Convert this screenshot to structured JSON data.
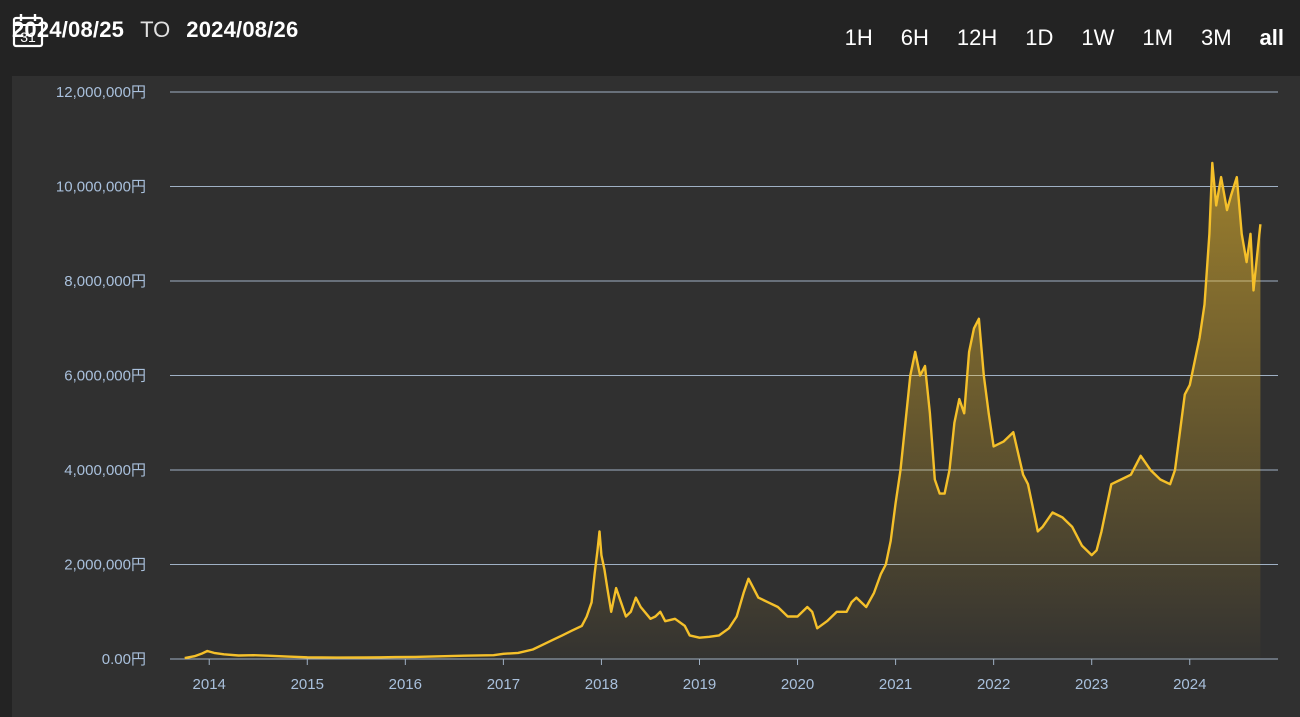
{
  "header": {
    "calendar_icon": "calendar-icon",
    "calendar_day": "31",
    "start_date": "2024/08/25",
    "to_label": "TO",
    "end_date": "2024/08/26"
  },
  "ranges": {
    "items": [
      {
        "label": "1H"
      },
      {
        "label": "6H"
      },
      {
        "label": "12H"
      },
      {
        "label": "1D"
      },
      {
        "label": "1W"
      },
      {
        "label": "1M"
      },
      {
        "label": "3M"
      },
      {
        "label": "all",
        "active": true
      }
    ]
  },
  "colors": {
    "line": "#f5c02a",
    "grid": "#9fb0c4",
    "tick": "#a9c0dc",
    "panel": "#303030",
    "page": "#232323"
  },
  "chart_data": {
    "type": "area",
    "ylim": [
      0,
      12000000
    ],
    "xlim": [
      2013.6,
      2024.9
    ],
    "y_ticks": [
      {
        "value": 0,
        "label": "0.00円"
      },
      {
        "value": 2000000,
        "label": "2,000,000円"
      },
      {
        "value": 4000000,
        "label": "4,000,000円"
      },
      {
        "value": 6000000,
        "label": "6,000,000円"
      },
      {
        "value": 8000000,
        "label": "8,000,000円"
      },
      {
        "value": 10000000,
        "label": "10,000,000円"
      },
      {
        "value": 12000000,
        "label": "12,000,000円"
      }
    ],
    "x_ticks": [
      {
        "value": 2014,
        "label": "2014"
      },
      {
        "value": 2015,
        "label": "2015"
      },
      {
        "value": 2016,
        "label": "2016"
      },
      {
        "value": 2017,
        "label": "2017"
      },
      {
        "value": 2018,
        "label": "2018"
      },
      {
        "value": 2019,
        "label": "2019"
      },
      {
        "value": 2020,
        "label": "2020"
      },
      {
        "value": 2021,
        "label": "2021"
      },
      {
        "value": 2022,
        "label": "2022"
      },
      {
        "value": 2023,
        "label": "2023"
      },
      {
        "value": 2024,
        "label": "2024"
      }
    ],
    "grid": true,
    "series": [
      {
        "values": [
          [
            2013.75,
            20000
          ],
          [
            2013.85,
            60000
          ],
          [
            2013.92,
            110000
          ],
          [
            2013.98,
            170000
          ],
          [
            2014.05,
            130000
          ],
          [
            2014.15,
            100000
          ],
          [
            2014.3,
            75000
          ],
          [
            2014.45,
            80000
          ],
          [
            2014.6,
            70000
          ],
          [
            2014.8,
            50000
          ],
          [
            2015.0,
            35000
          ],
          [
            2015.3,
            30000
          ],
          [
            2015.6,
            32000
          ],
          [
            2015.9,
            40000
          ],
          [
            2016.1,
            45000
          ],
          [
            2016.4,
            60000
          ],
          [
            2016.6,
            70000
          ],
          [
            2016.9,
            80000
          ],
          [
            2017.0,
            110000
          ],
          [
            2017.15,
            130000
          ],
          [
            2017.3,
            200000
          ],
          [
            2017.4,
            300000
          ],
          [
            2017.5,
            400000
          ],
          [
            2017.6,
            500000
          ],
          [
            2017.7,
            600000
          ],
          [
            2017.8,
            700000
          ],
          [
            2017.85,
            900000
          ],
          [
            2017.9,
            1200000
          ],
          [
            2017.93,
            1800000
          ],
          [
            2017.96,
            2300000
          ],
          [
            2017.98,
            2700000
          ],
          [
            2018.0,
            2200000
          ],
          [
            2018.03,
            1900000
          ],
          [
            2018.06,
            1500000
          ],
          [
            2018.1,
            1000000
          ],
          [
            2018.15,
            1500000
          ],
          [
            2018.2,
            1200000
          ],
          [
            2018.25,
            900000
          ],
          [
            2018.3,
            1000000
          ],
          [
            2018.35,
            1300000
          ],
          [
            2018.4,
            1100000
          ],
          [
            2018.5,
            850000
          ],
          [
            2018.55,
            900000
          ],
          [
            2018.6,
            1000000
          ],
          [
            2018.65,
            800000
          ],
          [
            2018.75,
            850000
          ],
          [
            2018.85,
            700000
          ],
          [
            2018.9,
            500000
          ],
          [
            2019.0,
            450000
          ],
          [
            2019.1,
            470000
          ],
          [
            2019.2,
            500000
          ],
          [
            2019.3,
            650000
          ],
          [
            2019.38,
            900000
          ],
          [
            2019.45,
            1400000
          ],
          [
            2019.5,
            1700000
          ],
          [
            2019.55,
            1500000
          ],
          [
            2019.6,
            1300000
          ],
          [
            2019.7,
            1200000
          ],
          [
            2019.8,
            1100000
          ],
          [
            2019.9,
            900000
          ],
          [
            2020.0,
            900000
          ],
          [
            2020.1,
            1100000
          ],
          [
            2020.15,
            1000000
          ],
          [
            2020.2,
            650000
          ],
          [
            2020.3,
            800000
          ],
          [
            2020.4,
            1000000
          ],
          [
            2020.5,
            1000000
          ],
          [
            2020.55,
            1200000
          ],
          [
            2020.6,
            1300000
          ],
          [
            2020.7,
            1100000
          ],
          [
            2020.78,
            1400000
          ],
          [
            2020.85,
            1800000
          ],
          [
            2020.9,
            2000000
          ],
          [
            2020.95,
            2500000
          ],
          [
            2021.0,
            3300000
          ],
          [
            2021.05,
            4000000
          ],
          [
            2021.1,
            5000000
          ],
          [
            2021.15,
            6000000
          ],
          [
            2021.2,
            6500000
          ],
          [
            2021.25,
            6000000
          ],
          [
            2021.3,
            6200000
          ],
          [
            2021.35,
            5200000
          ],
          [
            2021.4,
            3800000
          ],
          [
            2021.45,
            3500000
          ],
          [
            2021.5,
            3500000
          ],
          [
            2021.55,
            4000000
          ],
          [
            2021.6,
            5000000
          ],
          [
            2021.65,
            5500000
          ],
          [
            2021.7,
            5200000
          ],
          [
            2021.75,
            6500000
          ],
          [
            2021.8,
            7000000
          ],
          [
            2021.85,
            7200000
          ],
          [
            2021.9,
            6000000
          ],
          [
            2021.95,
            5200000
          ],
          [
            2022.0,
            4500000
          ],
          [
            2022.1,
            4600000
          ],
          [
            2022.2,
            4800000
          ],
          [
            2022.3,
            3900000
          ],
          [
            2022.35,
            3700000
          ],
          [
            2022.4,
            3200000
          ],
          [
            2022.45,
            2700000
          ],
          [
            2022.5,
            2800000
          ],
          [
            2022.6,
            3100000
          ],
          [
            2022.7,
            3000000
          ],
          [
            2022.8,
            2800000
          ],
          [
            2022.9,
            2400000
          ],
          [
            2023.0,
            2200000
          ],
          [
            2023.05,
            2300000
          ],
          [
            2023.1,
            2700000
          ],
          [
            2023.15,
            3200000
          ],
          [
            2023.2,
            3700000
          ],
          [
            2023.3,
            3800000
          ],
          [
            2023.4,
            3900000
          ],
          [
            2023.5,
            4300000
          ],
          [
            2023.6,
            4000000
          ],
          [
            2023.7,
            3800000
          ],
          [
            2023.8,
            3700000
          ],
          [
            2023.85,
            4000000
          ],
          [
            2023.9,
            4800000
          ],
          [
            2023.95,
            5600000
          ],
          [
            2024.0,
            5800000
          ],
          [
            2024.05,
            6300000
          ],
          [
            2024.1,
            6800000
          ],
          [
            2024.15,
            7500000
          ],
          [
            2024.2,
            9000000
          ],
          [
            2024.23,
            10500000
          ],
          [
            2024.27,
            9600000
          ],
          [
            2024.32,
            10200000
          ],
          [
            2024.38,
            9500000
          ],
          [
            2024.42,
            9800000
          ],
          [
            2024.48,
            10200000
          ],
          [
            2024.53,
            9000000
          ],
          [
            2024.58,
            8400000
          ],
          [
            2024.62,
            9000000
          ],
          [
            2024.65,
            7800000
          ],
          [
            2024.69,
            8600000
          ],
          [
            2024.72,
            9200000
          ]
        ]
      }
    ]
  }
}
